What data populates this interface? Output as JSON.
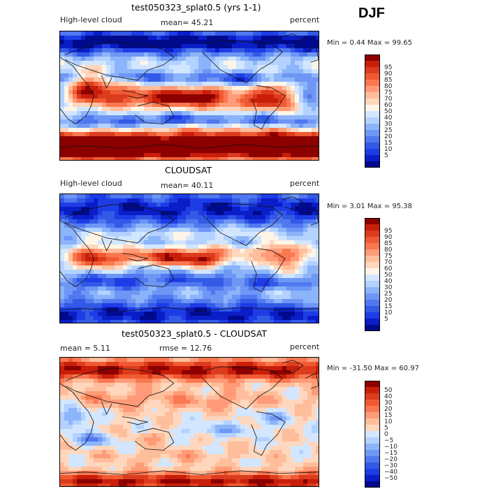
{
  "season": "DJF",
  "colors": {
    "abs": [
      "#000a8c",
      "#0a1ec8",
      "#1e3ce6",
      "#325ae6",
      "#5078f0",
      "#6e96f5",
      "#8cb4fa",
      "#b4d2ff",
      "#d2e6ff",
      "#fff5e6",
      "#ffd7be",
      "#ffbe9b",
      "#ff9b78",
      "#fa7850",
      "#f05a32",
      "#dc3c1e",
      "#c81e0a",
      "#8c0000"
    ],
    "diff": [
      "#000a8c",
      "#0a1ec8",
      "#1e3ce6",
      "#325ae6",
      "#5078f0",
      "#6e96f5",
      "#8cb4fa",
      "#b4d2ff",
      "#d2e6ff",
      "#ffd7be",
      "#ffbe9b",
      "#ff9b78",
      "#fa7850",
      "#f05a32",
      "#dc3c1e",
      "#c81e0a",
      "#8c0000"
    ]
  },
  "panels": [
    {
      "title": "test050323_splat0.5 (yrs 1-1)",
      "left_label": "High-level cloud",
      "center_label": "mean=  45.21",
      "right_label": "percent",
      "minmax": "Min =   0.44 Max =  99.65",
      "scale": "abs",
      "levels": [
        "95",
        "90",
        "85",
        "80",
        "75",
        "70",
        "60",
        "50",
        "40",
        "30",
        "25",
        "20",
        "15",
        "10",
        "5"
      ]
    },
    {
      "title": "CLOUDSAT",
      "left_label": "High-level cloud",
      "center_label": "mean=  40.11",
      "right_label": "percent",
      "minmax": "Min =   3.01 Max =  95.38",
      "scale": "abs",
      "levels": [
        "95",
        "90",
        "85",
        "80",
        "75",
        "70",
        "60",
        "50",
        "40",
        "30",
        "25",
        "20",
        "15",
        "10",
        "5"
      ]
    },
    {
      "title": "test050323_splat0.5 - CLOUDSAT",
      "left_label": "mean =   5.11",
      "center_label": "rmse =  12.76",
      "right_label": "percent",
      "minmax": "Min = -31.50 Max =  60.97",
      "scale": "diff",
      "levels": [
        "50",
        "40",
        "30",
        "20",
        "15",
        "10",
        "5",
        "0",
        "−5",
        "−10",
        "−15",
        "−20",
        "−30",
        "−40",
        "−50"
      ]
    }
  ]
}
